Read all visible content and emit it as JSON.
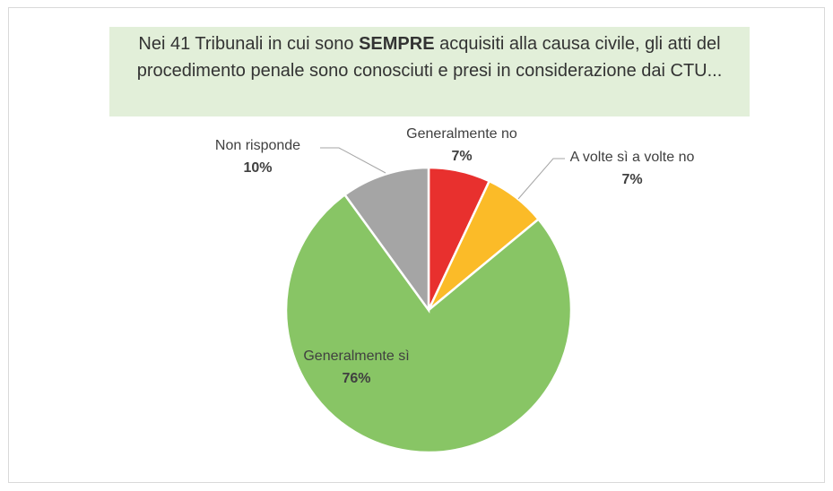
{
  "chart_data": {
    "type": "pie",
    "title": [
      "Nei 41 Tribunali in cui sono ",
      "SEMPRE",
      " acquisiti alla causa civile, gli atti del procedimento penale sono conosciuti e presi in considerazione dai CTU..."
    ],
    "categories": [
      "Generalmente no",
      "A volte sì a volte no",
      "Generalmente sì",
      "Non risponde"
    ],
    "values": [
      7,
      7,
      76,
      10
    ],
    "value_labels": [
      "7%",
      "7%",
      "76%",
      "10%"
    ],
    "colors": [
      "#e8302e",
      "#fbbb28",
      "#88c565",
      "#a5a5a5"
    ]
  }
}
